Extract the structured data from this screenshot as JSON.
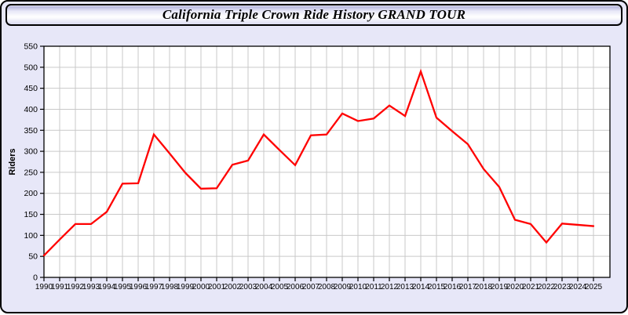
{
  "header": {
    "title": "California Triple Crown Ride History GRAND TOUR"
  },
  "chart_data": {
    "type": "line",
    "title": "California Triple Crown Ride History GRAND TOUR",
    "xlabel": "",
    "ylabel": "Riders",
    "categories": [
      "1990",
      "1991",
      "1992",
      "1993",
      "1994",
      "1995",
      "1996",
      "1997",
      "1998",
      "1999",
      "2000",
      "2001",
      "2002",
      "2003",
      "2004",
      "2005",
      "2006",
      "2007",
      "2008",
      "2009",
      "2010",
      "2011",
      "2012",
      "2013",
      "2014",
      "2015",
      "2016",
      "2017",
      "2018",
      "2019",
      "2020",
      "2021",
      "2022",
      "2023",
      "2024",
      "2025"
    ],
    "series": [
      {
        "name": "Riders",
        "color": "#ff0000",
        "values": [
          52,
          90,
          127,
          127,
          156,
          223,
          224,
          340,
          295,
          249,
          211,
          212,
          268,
          278,
          340,
          303,
          267,
          338,
          340,
          390,
          372,
          378,
          409,
          384,
          490,
          380,
          348,
          317,
          258,
          215,
          137,
          127,
          83,
          128,
          125,
          122
        ]
      }
    ],
    "ylim": [
      0,
      550
    ],
    "ytick_step": 50,
    "grid": true,
    "legend": false,
    "colors": {
      "line": "#ff0000",
      "grid": "#c9c9c9",
      "plot_background": "#ffffff",
      "panel_background": "#e7e7f8",
      "axis": "#000000",
      "tick_label": "#000000"
    }
  }
}
